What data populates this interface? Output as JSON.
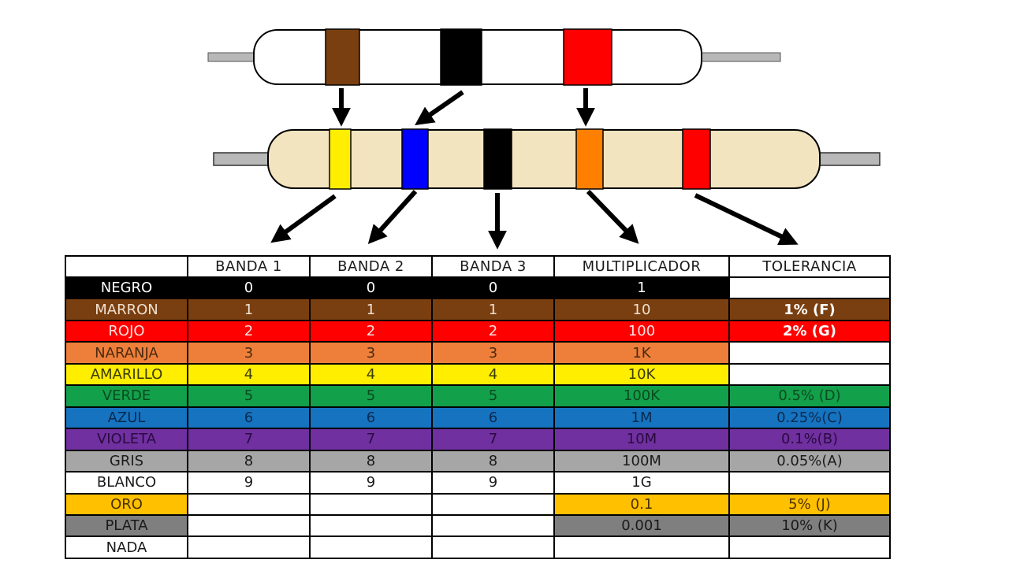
{
  "diagram": {
    "resistor_4band": {
      "body_color": "#ffffff",
      "bands": [
        "#7a3f10",
        "#000000",
        "#ff0000"
      ]
    },
    "resistor_5band": {
      "body_color": "#f3e4c0",
      "bands": [
        "#ffee00",
        "#0000ff",
        "#000000",
        "#ff8000",
        "#ff0000"
      ]
    }
  },
  "table": {
    "headers": [
      "",
      "BANDA 1",
      "BANDA 2",
      "BANDA 3",
      "MULTIPLICADOR",
      "TOLERANCIA"
    ],
    "rows": [
      {
        "name": "NEGRO",
        "bg": "#000000",
        "fg": "#ffffff",
        "b1": "0",
        "b2": "0",
        "b3": "0",
        "mult": "1",
        "tol": "",
        "tol_bg": "#ffffff",
        "tol_fg": "#000000",
        "tol_bold": false
      },
      {
        "name": "MARRON",
        "bg": "#7a3f10",
        "fg": "#f0e0d0",
        "b1": "1",
        "b2": "1",
        "b3": "1",
        "mult": "10",
        "tol": "1% (F)",
        "tol_bg": "#7a3f10",
        "tol_fg": "#ffffff",
        "tol_bold": true
      },
      {
        "name": "ROJO",
        "bg": "#ff0000",
        "fg": "#ffe0e0",
        "b1": "2",
        "b2": "2",
        "b3": "2",
        "mult": "100",
        "tol": "2% (G)",
        "tol_bg": "#ff0000",
        "tol_fg": "#ffffff",
        "tol_bold": true
      },
      {
        "name": "NARANJA",
        "bg": "#ee7f3a",
        "fg": "#4a2a10",
        "b1": "3",
        "b2": "3",
        "b3": "3",
        "mult": "1K",
        "tol": "",
        "tol_bg": "#ffffff",
        "tol_fg": "#000000",
        "tol_bold": false
      },
      {
        "name": "AMARILLO",
        "bg": "#ffee00",
        "fg": "#3a3a00",
        "b1": "4",
        "b2": "4",
        "b3": "4",
        "mult": "10K",
        "tol": "",
        "tol_bg": "#ffffff",
        "tol_fg": "#000000",
        "tol_bold": false
      },
      {
        "name": "VERDE",
        "bg": "#13a04a",
        "fg": "#0a4a20",
        "b1": "5",
        "b2": "5",
        "b3": "5",
        "mult": "100K",
        "tol": "0.5% (D)",
        "tol_bg": "#13a04a",
        "tol_fg": "#0a4a20",
        "tol_bold": false
      },
      {
        "name": "AZUL",
        "bg": "#1673c0",
        "fg": "#0a2a50",
        "b1": "6",
        "b2": "6",
        "b3": "6",
        "mult": "1M",
        "tol": "0.25%(C)",
        "tol_bg": "#1673c0",
        "tol_fg": "#0a2a50",
        "tol_bold": false
      },
      {
        "name": "VIOLETA",
        "bg": "#7030a0",
        "fg": "#2a0a40",
        "b1": "7",
        "b2": "7",
        "b3": "7",
        "mult": "10M",
        "tol": "0.1%(B)",
        "tol_bg": "#7030a0",
        "tol_fg": "#2a0a40",
        "tol_bold": false
      },
      {
        "name": "GRIS",
        "bg": "#a6a6a6",
        "fg": "#1a1a1a",
        "b1": "8",
        "b2": "8",
        "b3": "8",
        "mult": "100M",
        "tol": "0.05%(A)",
        "tol_bg": "#a6a6a6",
        "tol_fg": "#1a1a1a",
        "tol_bold": false
      },
      {
        "name": "BLANCO",
        "bg": "#ffffff",
        "fg": "#1a1a1a",
        "b1": "9",
        "b2": "9",
        "b3": "9",
        "mult": "1G",
        "tol": "",
        "tol_bg": "#ffffff",
        "tol_fg": "#000000",
        "tol_bold": false
      },
      {
        "name": "ORO",
        "bg": "#ffc000",
        "fg": "#4a3000",
        "b1": "",
        "b2": "",
        "b3": "",
        "mult": "0.1",
        "tol": "5% (J)",
        "tol_bg": "#ffc000",
        "tol_fg": "#4a3000",
        "tol_bold": false
      },
      {
        "name": "PLATA",
        "bg": "#7f7f7f",
        "fg": "#1a1a1a",
        "b1": "",
        "b2": "",
        "b3": "",
        "mult": "0.001",
        "tol": "10% (K)",
        "tol_bg": "#7f7f7f",
        "tol_fg": "#1a1a1a",
        "tol_bold": false
      },
      {
        "name": "NADA",
        "bg": "#ffffff",
        "fg": "#1a1a1a",
        "b1": "",
        "b2": "",
        "b3": "",
        "mult": "",
        "tol": "",
        "tol_bg": "#ffffff",
        "tol_fg": "#000000",
        "tol_bold": false
      }
    ]
  }
}
